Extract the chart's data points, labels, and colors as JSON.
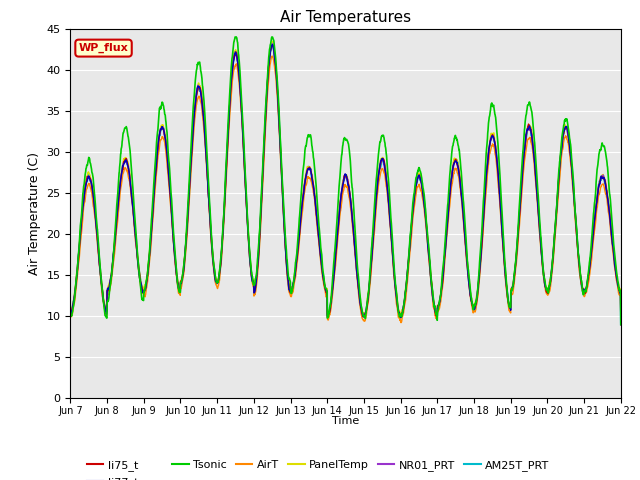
{
  "title": "Air Temperatures",
  "ylabel": "Air Temperature (C)",
  "xlabel": "Time",
  "annotation_text": "WP_flux",
  "annotation_bg": "#ffffcc",
  "annotation_edge": "#cc0000",
  "annotation_text_color": "#cc0000",
  "ylim": [
    0,
    45
  ],
  "yticks": [
    0,
    5,
    10,
    15,
    20,
    25,
    30,
    35,
    40,
    45
  ],
  "bg_color": "#e8e8e8",
  "series": {
    "li75_t": {
      "color": "#cc0000",
      "lw": 1.0
    },
    "li77_temp": {
      "color": "#0000bb",
      "lw": 1.0
    },
    "Tsonic": {
      "color": "#00cc00",
      "lw": 1.2
    },
    "AirT": {
      "color": "#ff8800",
      "lw": 1.0
    },
    "PanelTemp": {
      "color": "#dddd00",
      "lw": 1.0
    },
    "NR01_PRT": {
      "color": "#9933cc",
      "lw": 1.0
    },
    "AM25T_PRT": {
      "color": "#00bbcc",
      "lw": 1.3
    }
  },
  "xtick_labels": [
    "Jun 7",
    "Jun 8",
    "Jun 9",
    "Jun 10",
    "Jun 11",
    "Jun 12",
    "Jun 13",
    "Jun 14",
    "Jun 15",
    "Jun 16",
    "Jun 17",
    "Jun 18",
    "Jun 19",
    "Jun 20",
    "Jun 21",
    "Jun 22"
  ],
  "n_days": 15,
  "pts_per_day": 144,
  "figsize": [
    6.4,
    4.8
  ],
  "dpi": 100
}
